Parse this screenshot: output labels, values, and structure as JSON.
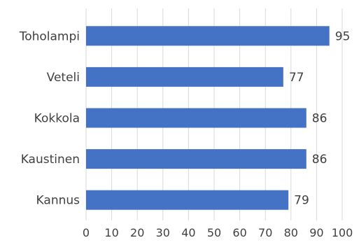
{
  "chart_data": {
    "type": "bar",
    "orientation": "horizontal",
    "categories": [
      "Toholampi",
      "Veteli",
      "Kokkola",
      "Kaustinen",
      "Kannus"
    ],
    "values": [
      95,
      77,
      86,
      86,
      79
    ],
    "data_labels": [
      "95",
      "77",
      "86",
      "86",
      "79"
    ],
    "xlim": [
      0,
      100
    ],
    "x_ticks": [
      "0",
      "10",
      "20",
      "30",
      "40",
      "50",
      "60",
      "70",
      "80",
      "90",
      "100"
    ],
    "grid": "vertical",
    "legend": "none",
    "title": "",
    "xlabel": "",
    "ylabel": "",
    "bar_color": "#4472C4",
    "grid_color": "#D9D9D9",
    "text_color": "#404040"
  }
}
